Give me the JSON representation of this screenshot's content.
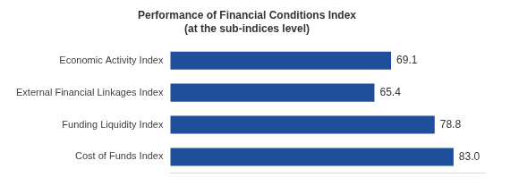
{
  "chart_data": {
    "type": "bar",
    "orientation": "horizontal",
    "title": "Performance of Financial Conditions Index",
    "subtitle": "(at the sub-indices level)",
    "categories": [
      "Economic Activity Index",
      "External Financial Linkages Index",
      "Funding Liquidity Index",
      "Cost of Funds Index"
    ],
    "values": [
      69.1,
      65.4,
      78.8,
      83.0
    ],
    "value_labels": [
      "69.1",
      "65.4",
      "78.8",
      "83.0"
    ],
    "color": "#1f4e9a",
    "xlim": [
      20,
      90
    ],
    "grid": false,
    "data_labels": true,
    "tick_labels": "y"
  }
}
